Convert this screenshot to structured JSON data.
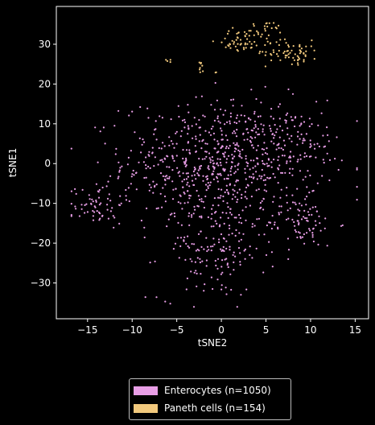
{
  "chart_data": {
    "type": "scatter",
    "title": "",
    "xlabel": "tSNE2",
    "ylabel": "tSNE1",
    "xlim": [
      -18.5,
      16.5
    ],
    "ylim": [
      -39,
      39.5
    ],
    "x_ticks": [
      -15,
      -10,
      -5,
      0,
      5,
      10,
      15
    ],
    "y_ticks": [
      -30,
      -20,
      -10,
      0,
      10,
      20,
      30
    ],
    "grid": false,
    "legend_placement": "below",
    "series": [
      {
        "name": "Enterocytes (n=1050)",
        "color": "#e89ee6",
        "count": 1050,
        "clusters": [
          {
            "cx": 0,
            "cy": 0,
            "sx": 5.5,
            "sy": 8,
            "n": 700
          },
          {
            "cx": -1,
            "cy": -22,
            "sx": 3,
            "sy": 6,
            "n": 150
          },
          {
            "cx": -14,
            "cy": -10,
            "sx": 1.5,
            "sy": 3,
            "n": 60
          },
          {
            "cx": 9,
            "cy": -15,
            "sx": 2,
            "sy": 3,
            "n": 80
          },
          {
            "cx": 8,
            "cy": 5,
            "sx": 3,
            "sy": 5,
            "n": 60
          }
        ]
      },
      {
        "name": "Paneth cells (n=154)",
        "color": "#f2c97d",
        "count": 154,
        "clusters": [
          {
            "cx": 2,
            "cy": 31,
            "sx": 1.2,
            "sy": 1.5,
            "n": 40
          },
          {
            "cx": 5,
            "cy": 32,
            "sx": 1.2,
            "sy": 2,
            "n": 40
          },
          {
            "cx": 8,
            "cy": 28,
            "sx": 1.5,
            "sy": 1.5,
            "n": 60
          },
          {
            "cx": -6,
            "cy": 26,
            "sx": 0.3,
            "sy": 0.3,
            "n": 4
          },
          {
            "cx": -2.5,
            "cy": 25,
            "sx": 0.4,
            "sy": 0.4,
            "n": 5
          },
          {
            "cx": -1,
            "cy": 23,
            "sx": 0.8,
            "sy": 0.8,
            "n": 5
          }
        ]
      }
    ]
  }
}
